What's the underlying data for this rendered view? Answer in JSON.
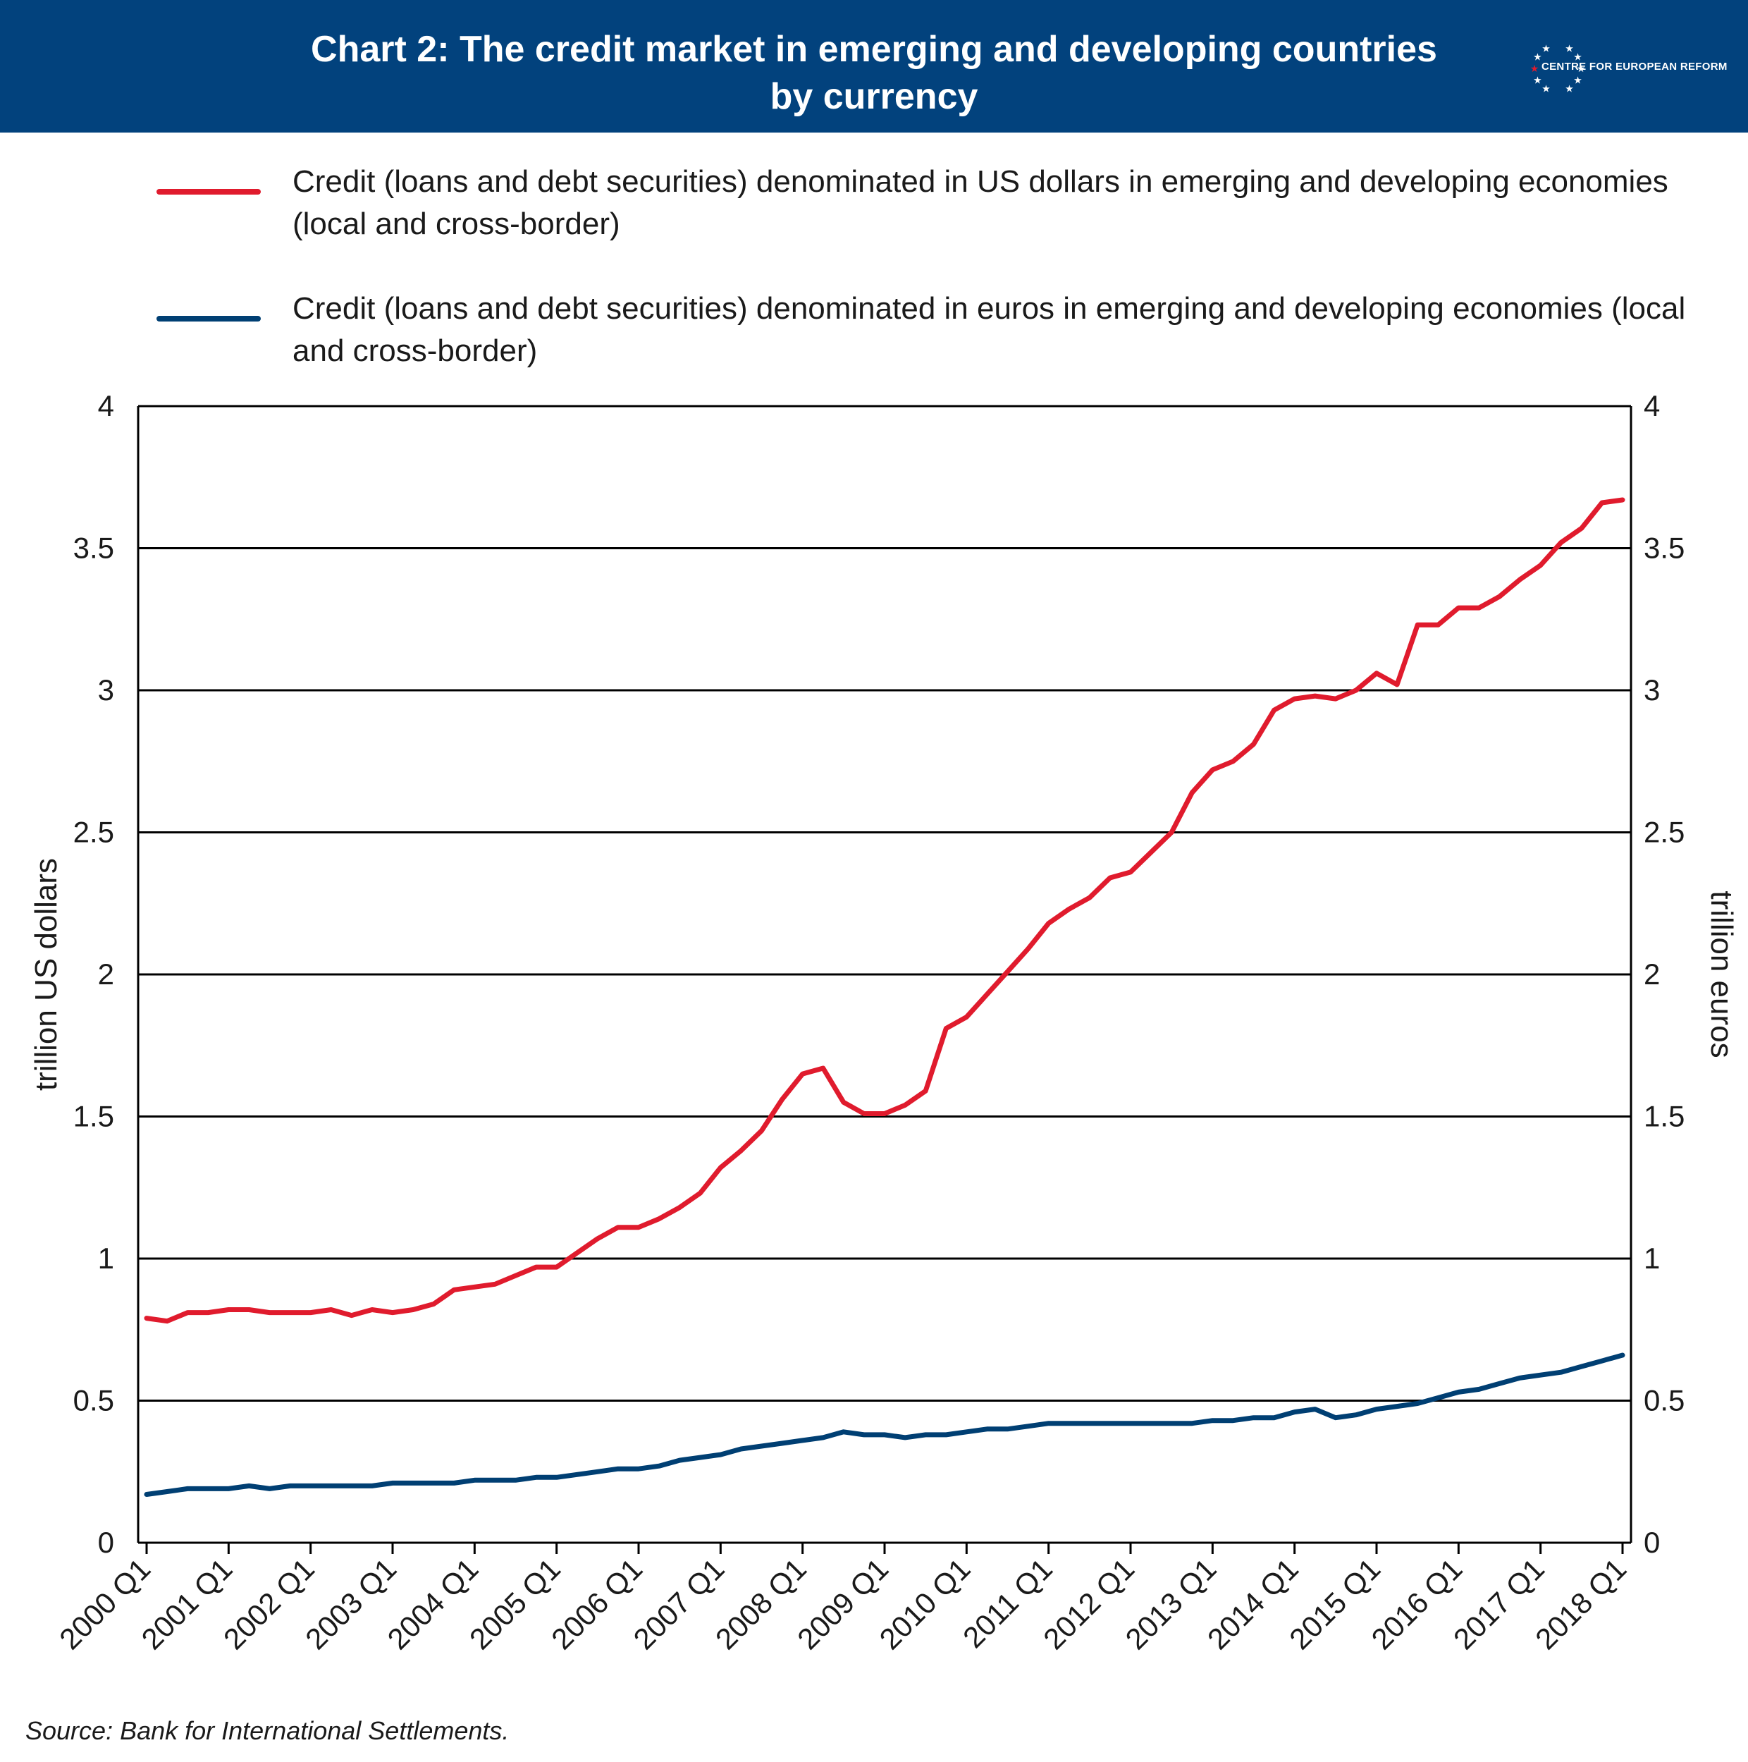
{
  "header": {
    "title_line1": "Chart 2: The credit market in emerging and developing countries",
    "title_line2": "by currency",
    "logo_text": "CENTRE FOR EUROPEAN REFORM"
  },
  "colors": {
    "header_bg": "#02427d",
    "usd": "#e01b2d",
    "eur": "#003f73",
    "grid": "#000000"
  },
  "legend": [
    {
      "text": "Credit (loans and debt securities) denominated in US dollars in emerging and developing economies (local and cross-border)",
      "color": "#e01b2d"
    },
    {
      "text": "Credit (loans and debt securities) denominated in euros in emerging and developing economies (local and cross-border)",
      "color": "#003f73"
    }
  ],
  "source": "Source: Bank for International Settlements.",
  "chart_data": {
    "type": "line",
    "ylabel_left": "trillion US dollars",
    "ylabel_right": "trillion euros",
    "ylim": [
      0,
      4
    ],
    "yticks": [
      "0",
      "0.5",
      "1",
      "1.5",
      "2",
      "2.5",
      "3",
      "3.5",
      "4"
    ],
    "xticks": [
      "2000 Q1",
      "2001 Q1",
      "2002 Q1",
      "2003 Q1",
      "2004 Q1",
      "2005 Q1",
      "2006 Q1",
      "2007 Q1",
      "2008 Q1",
      "2009 Q1",
      "2010 Q1",
      "2011 Q1",
      "2012 Q1",
      "2013 Q1",
      "2014 Q1",
      "2015 Q1",
      "2016 Q1",
      "2017 Q1",
      "2018 Q1"
    ],
    "grid": "horizontal",
    "x_start": "2000 Q1",
    "x_end": "2018 Q1",
    "series": [
      {
        "name": "Credit (loans and debt securities) denominated in US dollars in emerging and developing economies (local and cross-border)",
        "axis": "left",
        "values": [
          0.79,
          0.78,
          0.81,
          0.81,
          0.82,
          0.82,
          0.81,
          0.81,
          0.81,
          0.82,
          0.8,
          0.82,
          0.81,
          0.82,
          0.84,
          0.89,
          0.9,
          0.91,
          0.94,
          0.97,
          0.97,
          1.02,
          1.07,
          1.11,
          1.11,
          1.14,
          1.18,
          1.23,
          1.32,
          1.38,
          1.45,
          1.56,
          1.65,
          1.67,
          1.55,
          1.51,
          1.51,
          1.54,
          1.59,
          1.81,
          1.85,
          1.93,
          2.01,
          2.09,
          2.18,
          2.23,
          2.27,
          2.34,
          2.36,
          2.43,
          2.5,
          2.64,
          2.72,
          2.75,
          2.81,
          2.93,
          2.97,
          2.98,
          2.97,
          3.0,
          3.06,
          3.02,
          3.23,
          3.23,
          3.29,
          3.29,
          3.33,
          3.39,
          3.44,
          3.52,
          3.57,
          3.66,
          3.67
        ]
      },
      {
        "name": "Credit (loans and debt securities) denominated in euros in emerging and developing economies (local and cross-border)",
        "axis": "right",
        "values": [
          0.17,
          0.18,
          0.19,
          0.19,
          0.19,
          0.2,
          0.19,
          0.2,
          0.2,
          0.2,
          0.2,
          0.2,
          0.21,
          0.21,
          0.21,
          0.21,
          0.22,
          0.22,
          0.22,
          0.23,
          0.23,
          0.24,
          0.25,
          0.26,
          0.26,
          0.27,
          0.29,
          0.3,
          0.31,
          0.33,
          0.34,
          0.35,
          0.36,
          0.37,
          0.39,
          0.38,
          0.38,
          0.37,
          0.38,
          0.38,
          0.39,
          0.4,
          0.4,
          0.41,
          0.42,
          0.42,
          0.42,
          0.42,
          0.42,
          0.42,
          0.42,
          0.42,
          0.43,
          0.43,
          0.44,
          0.44,
          0.46,
          0.47,
          0.44,
          0.45,
          0.47,
          0.48,
          0.49,
          0.51,
          0.53,
          0.54,
          0.56,
          0.58,
          0.59,
          0.6,
          0.62,
          0.64,
          0.66
        ]
      }
    ]
  }
}
